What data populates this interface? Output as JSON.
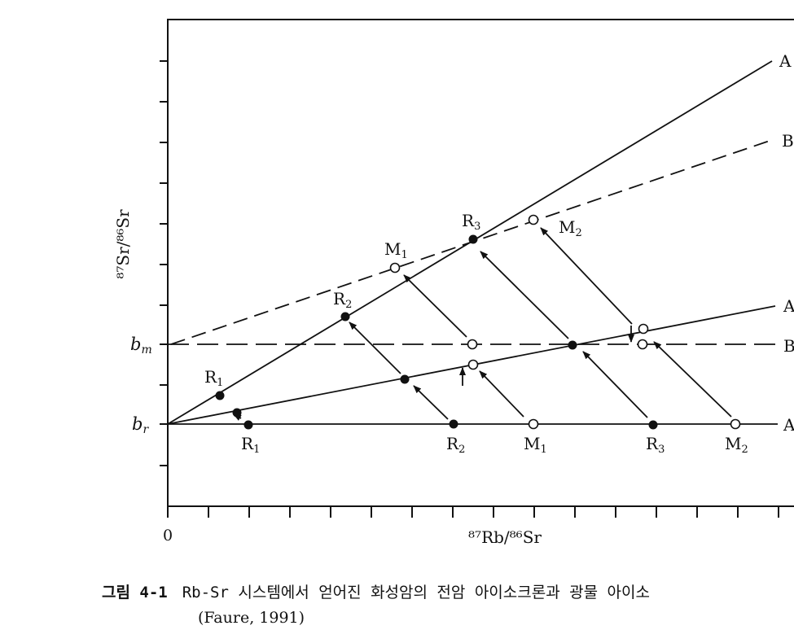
{
  "figure": {
    "y_axis_label": "⁸⁷Sr/⁸⁶Sr",
    "x_axis_label": "⁸⁷Rb/⁸⁶Sr",
    "x_origin_label": "0",
    "b_m_label": "b",
    "b_m_sub": "m",
    "b_r_label": "b",
    "b_r_sub": "r",
    "lines": {
      "upper_solid": "A",
      "upper_dashed": "B",
      "middle_solid": "A",
      "middle_dashed": "B",
      "bottom_solid": "A"
    },
    "points": {
      "R1_upper": {
        "base": "R",
        "sub": "1"
      },
      "R2_upper": {
        "base": "R",
        "sub": "2"
      },
      "R3_upper": {
        "base": "R",
        "sub": "3"
      },
      "M1_upper": {
        "base": "M",
        "sub": "1"
      },
      "M2_upper": {
        "base": "M",
        "sub": "2"
      },
      "R1_bottom": {
        "base": "R",
        "sub": "1"
      },
      "R2_bottom": {
        "base": "R",
        "sub": "2"
      },
      "M1_bottom": {
        "base": "M",
        "sub": "1"
      },
      "R3_bottom": {
        "base": "R",
        "sub": "3"
      },
      "M2_bottom": {
        "base": "M",
        "sub": "2"
      }
    }
  },
  "caption": {
    "number": "그림 4-1",
    "text": "Rb-Sr 시스템에서 얻어진 화성암의 전암 아이소크론과 광물 아이소",
    "citation": "(Faure, 1991)"
  }
}
